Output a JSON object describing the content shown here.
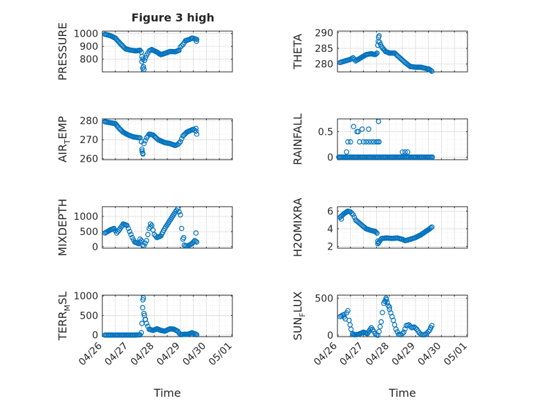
{
  "figure_title": "Figure 3 high",
  "colors": {
    "marker": "#0072BD",
    "axis": "#262626",
    "grid": "#dcdcdc"
  },
  "chart_data": [
    {
      "type": "scatter",
      "title": "Figure 3 high",
      "ylabel": "PRESSURE",
      "ylabel_parts": [],
      "xlabel": "",
      "xlim": [
        0,
        5
      ],
      "ylim": [
        700,
        1020
      ],
      "yticks": [
        800,
        900,
        1000
      ],
      "xticks": [
        0,
        0.5,
        1,
        1.5,
        2,
        2.5,
        3,
        3.5,
        4,
        4.5,
        5
      ],
      "xtick_labels": [],
      "grid": true,
      "minor_grid": true,
      "keys": [
        [
          0.1,
          995
        ],
        [
          0.3,
          985
        ],
        [
          0.5,
          965
        ],
        [
          0.7,
          920
        ],
        [
          0.9,
          880
        ],
        [
          1.1,
          870
        ],
        [
          1.3,
          865
        ],
        [
          1.45,
          870
        ],
        [
          1.5,
          855
        ],
        [
          1.52,
          820
        ],
        [
          1.55,
          800
        ],
        [
          1.58,
          740
        ],
        [
          1.62,
          790
        ],
        [
          1.7,
          830
        ],
        [
          1.8,
          865
        ],
        [
          1.9,
          875
        ],
        [
          2.1,
          855
        ],
        [
          2.25,
          835
        ],
        [
          2.4,
          845
        ],
        [
          2.6,
          860
        ],
        [
          2.8,
          858
        ],
        [
          2.95,
          870
        ],
        [
          3.0,
          895
        ],
        [
          3.1,
          915
        ],
        [
          3.2,
          945
        ],
        [
          3.35,
          955
        ],
        [
          3.45,
          965
        ],
        [
          3.55,
          960
        ],
        [
          3.63,
          955
        ]
      ],
      "outliers": [
        [
          1.52,
          780
        ],
        [
          1.55,
          730
        ],
        [
          1.6,
          720
        ],
        [
          3.62,
          940
        ]
      ]
    },
    {
      "type": "scatter",
      "title": "",
      "ylabel": "THETA",
      "ylabel_parts": [],
      "xlabel": "",
      "xlim": [
        0,
        5
      ],
      "ylim": [
        277.5,
        290.5
      ],
      "yticks": [
        280,
        285,
        290
      ],
      "xticks": [
        0,
        0.5,
        1,
        1.5,
        2,
        2.5,
        3,
        3.5,
        4,
        4.5,
        5
      ],
      "xtick_labels": [],
      "grid": true,
      "minor_grid": true,
      "keys": [
        [
          0.1,
          280.5
        ],
        [
          0.3,
          281
        ],
        [
          0.5,
          281.5
        ],
        [
          0.6,
          282
        ],
        [
          0.7,
          281
        ],
        [
          0.9,
          282
        ],
        [
          1.1,
          283
        ],
        [
          1.3,
          283.3
        ],
        [
          1.45,
          283
        ],
        [
          1.52,
          283.5
        ],
        [
          1.55,
          286
        ],
        [
          1.58,
          288.5
        ],
        [
          1.62,
          287
        ],
        [
          1.7,
          285.5
        ],
        [
          1.85,
          284
        ],
        [
          2.0,
          283.5
        ],
        [
          2.2,
          283.5
        ],
        [
          2.4,
          282
        ],
        [
          2.6,
          280.5
        ],
        [
          2.8,
          279.2
        ],
        [
          3.0,
          279
        ],
        [
          3.2,
          279
        ],
        [
          3.4,
          278.6
        ],
        [
          3.55,
          278.2
        ],
        [
          3.63,
          277.7
        ]
      ],
      "outliers": [
        [
          1.57,
          287.2
        ],
        [
          1.6,
          289
        ],
        [
          3.5,
          278.5
        ]
      ]
    },
    {
      "type": "scatter",
      "title": "",
      "ylabel": "AIR_TEMP",
      "ylabel_parts": [
        "AIR",
        "T",
        "EMP"
      ],
      "xlabel": "",
      "xlim": [
        0,
        5
      ],
      "ylim": [
        259.5,
        281
      ],
      "yticks": [
        260,
        270,
        280
      ],
      "xticks": [
        0,
        0.5,
        1,
        1.5,
        2,
        2.5,
        3,
        3.5,
        4,
        4.5,
        5
      ],
      "xtick_labels": [],
      "grid": true,
      "minor_grid": true,
      "keys": [
        [
          0.1,
          279.5
        ],
        [
          0.3,
          279
        ],
        [
          0.5,
          278.5
        ],
        [
          0.65,
          276
        ],
        [
          0.8,
          274
        ],
        [
          1.0,
          272.5
        ],
        [
          1.2,
          271.5
        ],
        [
          1.45,
          271
        ],
        [
          1.5,
          269
        ],
        [
          1.52,
          265
        ],
        [
          1.55,
          263
        ],
        [
          1.6,
          268
        ],
        [
          1.7,
          271
        ],
        [
          1.8,
          273
        ],
        [
          1.95,
          272.5
        ],
        [
          2.15,
          270
        ],
        [
          2.4,
          268.5
        ],
        [
          2.6,
          268
        ],
        [
          2.8,
          267
        ],
        [
          2.9,
          267.5
        ],
        [
          3.0,
          269
        ],
        [
          3.1,
          272
        ],
        [
          3.25,
          274
        ],
        [
          3.4,
          275
        ],
        [
          3.5,
          275.5
        ],
        [
          3.6,
          274.5
        ],
        [
          3.63,
          273
        ]
      ],
      "outliers": [
        [
          1.53,
          264
        ],
        [
          1.56,
          262.5
        ],
        [
          3.6,
          276
        ]
      ]
    },
    {
      "type": "scatter",
      "title": "",
      "ylabel": "RAINFALL",
      "ylabel_parts": [],
      "xlabel": "",
      "xlim": [
        0,
        5
      ],
      "ylim": [
        -0.05,
        0.75
      ],
      "yticks": [
        0,
        0.5
      ],
      "ytick_labels": [
        "0",
        "0.5"
      ],
      "xticks": [
        0,
        0.5,
        1,
        1.5,
        2,
        2.5,
        3,
        3.5,
        4,
        4.5,
        5
      ],
      "xtick_labels": [],
      "grid": true,
      "minor_grid": true,
      "keys": [
        [
          0.05,
          0
        ],
        [
          3.65,
          0
        ]
      ],
      "outliers": [
        [
          0.35,
          0.1
        ],
        [
          0.4,
          0.3
        ],
        [
          0.5,
          0.3
        ],
        [
          0.62,
          0.6
        ],
        [
          0.75,
          0.5
        ],
        [
          0.8,
          0.5
        ],
        [
          0.85,
          0.3
        ],
        [
          0.95,
          0.55
        ],
        [
          1.0,
          0.3
        ],
        [
          1.1,
          0.3
        ],
        [
          1.2,
          0.3
        ],
        [
          1.3,
          0.3
        ],
        [
          1.4,
          0.3
        ],
        [
          1.5,
          0.3
        ],
        [
          1.55,
          0.3
        ],
        [
          1.58,
          0.7
        ],
        [
          1.6,
          0.3
        ],
        [
          2.5,
          0.1
        ],
        [
          2.6,
          0.1
        ],
        [
          2.7,
          0.1
        ],
        [
          1.2,
          0.55
        ]
      ]
    },
    {
      "type": "scatter",
      "title": "",
      "ylabel": "MIXDEPTH",
      "ylabel_parts": [],
      "xlabel": "",
      "xlim": [
        0,
        5
      ],
      "ylim": [
        -50,
        1320
      ],
      "yticks": [
        0,
        500,
        1000
      ],
      "xticks": [
        0,
        0.5,
        1,
        1.5,
        2,
        2.5,
        3,
        3.5,
        4,
        4.5,
        5
      ],
      "xtick_labels": [],
      "grid": true,
      "minor_grid": true,
      "keys": [
        [
          0.1,
          450
        ],
        [
          0.3,
          550
        ],
        [
          0.45,
          600
        ],
        [
          0.55,
          450
        ],
        [
          0.65,
          550
        ],
        [
          0.8,
          750
        ],
        [
          0.95,
          700
        ],
        [
          1.05,
          500
        ],
        [
          1.15,
          300
        ],
        [
          1.25,
          150
        ],
        [
          1.4,
          100
        ],
        [
          1.5,
          200
        ],
        [
          1.55,
          50
        ],
        [
          1.6,
          30
        ],
        [
          1.7,
          200
        ],
        [
          1.8,
          600
        ],
        [
          1.9,
          700
        ],
        [
          2.0,
          400
        ],
        [
          2.1,
          300
        ],
        [
          2.25,
          350
        ],
        [
          2.4,
          600
        ],
        [
          2.55,
          800
        ],
        [
          2.7,
          1000
        ],
        [
          2.85,
          1200
        ],
        [
          2.9,
          1250
        ],
        [
          3.0,
          1050
        ],
        [
          3.05,
          600
        ],
        [
          3.1,
          250
        ],
        [
          3.15,
          50
        ],
        [
          3.2,
          30
        ],
        [
          3.3,
          30
        ],
        [
          3.45,
          100
        ],
        [
          3.55,
          200
        ],
        [
          3.63,
          150
        ]
      ],
      "outliers": [
        [
          1.85,
          750
        ],
        [
          1.45,
          250
        ],
        [
          3.6,
          450
        ],
        [
          3.13,
          300
        ]
      ]
    },
    {
      "type": "scatter",
      "title": "",
      "ylabel": "H2OMIXRA",
      "ylabel_parts": [],
      "xlabel": "",
      "xlim": [
        0,
        5
      ],
      "ylim": [
        1.8,
        6.5
      ],
      "yticks": [
        2,
        4,
        6
      ],
      "xticks": [
        0,
        0.5,
        1,
        1.5,
        2,
        2.5,
        3,
        3.5,
        4,
        4.5,
        5
      ],
      "xtick_labels": [],
      "grid": true,
      "minor_grid": true,
      "keys": [
        [
          0.1,
          5.3
        ],
        [
          0.25,
          5.7
        ],
        [
          0.4,
          6.0
        ],
        [
          0.5,
          5.9
        ],
        [
          0.6,
          5.6
        ],
        [
          0.7,
          5.0
        ],
        [
          0.9,
          4.5
        ],
        [
          1.1,
          4.0
        ],
        [
          1.3,
          3.8
        ],
        [
          1.45,
          3.7
        ],
        [
          1.52,
          3.5
        ],
        [
          1.55,
          2.6
        ],
        [
          1.6,
          2.5
        ],
        [
          1.7,
          2.9
        ],
        [
          1.9,
          2.95
        ],
        [
          2.1,
          2.9
        ],
        [
          2.3,
          2.95
        ],
        [
          2.5,
          2.8
        ],
        [
          2.6,
          2.65
        ],
        [
          2.8,
          2.8
        ],
        [
          3.0,
          3.0
        ],
        [
          3.2,
          3.3
        ],
        [
          3.4,
          3.7
        ],
        [
          3.55,
          4.0
        ],
        [
          3.63,
          4.2
        ]
      ],
      "outliers": [
        [
          1.55,
          2.3
        ],
        [
          1.58,
          2.4
        ],
        [
          0.15,
          5.1
        ]
      ]
    },
    {
      "type": "scatter",
      "title": "",
      "ylabel": "TERR_MSL",
      "ylabel_parts": [
        "TERR",
        "M",
        "SL"
      ],
      "xlabel": "Time",
      "xlim": [
        0,
        5
      ],
      "ylim": [
        -40,
        1020
      ],
      "yticks": [
        0,
        500,
        1000
      ],
      "xticks": [
        0,
        0.5,
        1,
        1.5,
        2,
        2.5,
        3,
        3.5,
        4,
        4.5,
        5
      ],
      "xtick_labels": [
        "04/26",
        "04/27",
        "04/28",
        "04/29",
        "04/30",
        "05/01"
      ],
      "grid": true,
      "minor_grid": true,
      "keys": [
        [
          0.1,
          0
        ],
        [
          0.6,
          0
        ],
        [
          1.2,
          0
        ],
        [
          1.45,
          5
        ],
        [
          1.5,
          60
        ],
        [
          1.52,
          300
        ],
        [
          1.55,
          700
        ],
        [
          1.58,
          950
        ],
        [
          1.62,
          500
        ],
        [
          1.7,
          300
        ],
        [
          1.8,
          150
        ],
        [
          1.95,
          120
        ],
        [
          2.1,
          160
        ],
        [
          2.25,
          120
        ],
        [
          2.4,
          100
        ],
        [
          2.6,
          160
        ],
        [
          2.75,
          150
        ],
        [
          2.9,
          100
        ],
        [
          3.0,
          10
        ],
        [
          3.15,
          20
        ],
        [
          3.3,
          20
        ],
        [
          3.45,
          60
        ],
        [
          3.6,
          20
        ],
        [
          3.63,
          10
        ]
      ],
      "outliers": [
        [
          1.56,
          900
        ],
        [
          1.6,
          550
        ],
        [
          1.65,
          400
        ]
      ]
    },
    {
      "type": "scatter",
      "title": "",
      "ylabel": "SUN_FLUX",
      "ylabel_parts": [
        "SUN",
        "F",
        "LUX"
      ],
      "xlabel": "Time",
      "xlim": [
        0,
        5
      ],
      "ylim": [
        -20,
        540
      ],
      "yticks": [
        0,
        500
      ],
      "xticks": [
        0,
        0.5,
        1,
        1.5,
        2,
        2.5,
        3,
        3.5,
        4,
        4.5,
        5
      ],
      "xtick_labels": [
        "04/26",
        "04/27",
        "04/28",
        "04/29",
        "04/30",
        "05/01"
      ],
      "grid": true,
      "minor_grid": true,
      "keys": [
        [
          0.1,
          250
        ],
        [
          0.2,
          270
        ],
        [
          0.3,
          220
        ],
        [
          0.35,
          300
        ],
        [
          0.4,
          330
        ],
        [
          0.45,
          200
        ],
        [
          0.52,
          80
        ],
        [
          0.58,
          20
        ],
        [
          0.65,
          5
        ],
        [
          0.8,
          10
        ],
        [
          1.0,
          40
        ],
        [
          1.15,
          20
        ],
        [
          1.3,
          100
        ],
        [
          1.4,
          50
        ],
        [
          1.45,
          20
        ],
        [
          1.5,
          5
        ],
        [
          1.55,
          0
        ],
        [
          1.6,
          50
        ],
        [
          1.68,
          180
        ],
        [
          1.78,
          430
        ],
        [
          1.88,
          480
        ],
        [
          1.95,
          400
        ],
        [
          2.05,
          300
        ],
        [
          2.15,
          200
        ],
        [
          2.25,
          80
        ],
        [
          2.35,
          10
        ],
        [
          2.45,
          5
        ],
        [
          2.55,
          40
        ],
        [
          2.65,
          130
        ],
        [
          2.75,
          140
        ],
        [
          2.85,
          100
        ],
        [
          2.95,
          110
        ],
        [
          3.05,
          80
        ],
        [
          3.15,
          30
        ],
        [
          3.25,
          5
        ],
        [
          3.35,
          5
        ],
        [
          3.45,
          30
        ],
        [
          3.55,
          70
        ],
        [
          3.63,
          130
        ]
      ],
      "outliers": [
        [
          1.82,
          460
        ],
        [
          1.87,
          500
        ],
        [
          2.0,
          380
        ],
        [
          0.25,
          280
        ],
        [
          3.58,
          100
        ]
      ]
    }
  ]
}
